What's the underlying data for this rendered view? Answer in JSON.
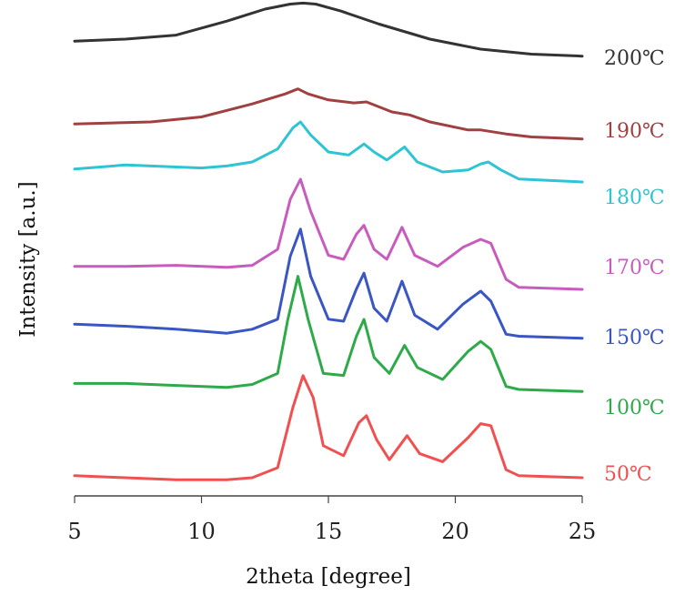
{
  "chart_data": {
    "type": "line",
    "xlabel": "2theta [degree]",
    "ylabel": "Intensity [a.u.]",
    "xlim": [
      5,
      25
    ],
    "x_ticks": [
      5,
      10,
      15,
      20,
      25
    ],
    "y_ticks": [],
    "grid": false,
    "legend": "labels at right end of each trace",
    "stacked_offset": true,
    "series": [
      {
        "name": "200℃",
        "color": "#333333",
        "points": [
          [
            5,
            0.58
          ],
          [
            7,
            0.6
          ],
          [
            9,
            0.64
          ],
          [
            11,
            0.78
          ],
          [
            12.5,
            0.9
          ],
          [
            13.5,
            0.95
          ],
          [
            14,
            0.96
          ],
          [
            14.5,
            0.95
          ],
          [
            15.5,
            0.88
          ],
          [
            17,
            0.75
          ],
          [
            19,
            0.6
          ],
          [
            21,
            0.5
          ],
          [
            23,
            0.45
          ],
          [
            25,
            0.43
          ]
        ]
      },
      {
        "name": "190℃",
        "color": "#a04040",
        "points": [
          [
            5,
            0.48
          ],
          [
            8,
            0.5
          ],
          [
            10,
            0.55
          ],
          [
            12,
            0.68
          ],
          [
            13.3,
            0.78
          ],
          [
            13.8,
            0.83
          ],
          [
            14.2,
            0.78
          ],
          [
            15,
            0.72
          ],
          [
            16,
            0.69
          ],
          [
            16.5,
            0.7
          ],
          [
            17.5,
            0.6
          ],
          [
            18.2,
            0.57
          ],
          [
            19,
            0.5
          ],
          [
            20.5,
            0.42
          ],
          [
            21,
            0.42
          ],
          [
            22,
            0.38
          ],
          [
            23,
            0.35
          ],
          [
            25,
            0.33
          ]
        ]
      },
      {
        "name": "180℃",
        "color": "#2ec4d3",
        "points": [
          [
            5,
            0.73
          ],
          [
            7,
            0.77
          ],
          [
            9,
            0.75
          ],
          [
            10,
            0.74
          ],
          [
            11,
            0.76
          ],
          [
            12,
            0.8
          ],
          [
            13,
            0.93
          ],
          [
            13.6,
            1.14
          ],
          [
            13.9,
            1.2
          ],
          [
            14.3,
            1.07
          ],
          [
            15,
            0.9
          ],
          [
            15.8,
            0.87
          ],
          [
            16.4,
            0.98
          ],
          [
            16.8,
            0.9
          ],
          [
            17.3,
            0.82
          ],
          [
            18,
            0.95
          ],
          [
            18.5,
            0.8
          ],
          [
            19.5,
            0.7
          ],
          [
            20.5,
            0.72
          ],
          [
            21,
            0.78
          ],
          [
            21.3,
            0.8
          ],
          [
            21.8,
            0.72
          ],
          [
            22.5,
            0.63
          ],
          [
            25,
            0.6
          ]
        ]
      },
      {
        "name": "170℃",
        "color": "#c85cbe",
        "points": [
          [
            5,
            0.43
          ],
          [
            7,
            0.43
          ],
          [
            9,
            0.44
          ],
          [
            11,
            0.42
          ],
          [
            12,
            0.44
          ],
          [
            13,
            0.6
          ],
          [
            13.5,
            1.1
          ],
          [
            13.9,
            1.3
          ],
          [
            14.3,
            0.98
          ],
          [
            15,
            0.54
          ],
          [
            15.6,
            0.5
          ],
          [
            16.1,
            0.75
          ],
          [
            16.4,
            0.84
          ],
          [
            16.8,
            0.6
          ],
          [
            17.3,
            0.5
          ],
          [
            17.9,
            0.82
          ],
          [
            18.4,
            0.54
          ],
          [
            19.3,
            0.43
          ],
          [
            20.3,
            0.62
          ],
          [
            21,
            0.7
          ],
          [
            21.4,
            0.66
          ],
          [
            22,
            0.3
          ],
          [
            22.5,
            0.22
          ],
          [
            25,
            0.2
          ]
        ]
      },
      {
        "name": "150℃",
        "color": "#3a56c4",
        "points": [
          [
            5,
            0.57
          ],
          [
            7,
            0.55
          ],
          [
            9,
            0.52
          ],
          [
            11,
            0.48
          ],
          [
            12,
            0.52
          ],
          [
            13,
            0.62
          ],
          [
            13.5,
            1.25
          ],
          [
            13.9,
            1.52
          ],
          [
            14.3,
            1.05
          ],
          [
            15,
            0.62
          ],
          [
            15.6,
            0.6
          ],
          [
            16.1,
            0.92
          ],
          [
            16.4,
            1.08
          ],
          [
            16.8,
            0.73
          ],
          [
            17.3,
            0.6
          ],
          [
            17.9,
            1.0
          ],
          [
            18.4,
            0.66
          ],
          [
            19.3,
            0.52
          ],
          [
            20.3,
            0.77
          ],
          [
            21,
            0.9
          ],
          [
            21.4,
            0.8
          ],
          [
            22,
            0.47
          ],
          [
            22.5,
            0.45
          ],
          [
            25,
            0.43
          ]
        ]
      },
      {
        "name": "100℃",
        "color": "#2eaa4a",
        "points": [
          [
            5,
            0.66
          ],
          [
            7,
            0.66
          ],
          [
            9,
            0.64
          ],
          [
            11,
            0.62
          ],
          [
            12,
            0.65
          ],
          [
            13,
            0.76
          ],
          [
            13.4,
            1.3
          ],
          [
            13.8,
            1.73
          ],
          [
            14.2,
            1.3
          ],
          [
            14.8,
            0.76
          ],
          [
            15.6,
            0.74
          ],
          [
            16.1,
            1.13
          ],
          [
            16.4,
            1.3
          ],
          [
            16.8,
            0.92
          ],
          [
            17.4,
            0.76
          ],
          [
            18,
            1.04
          ],
          [
            18.5,
            0.82
          ],
          [
            19.5,
            0.7
          ],
          [
            20.5,
            0.98
          ],
          [
            21,
            1.08
          ],
          [
            21.4,
            1.0
          ],
          [
            22,
            0.63
          ],
          [
            22.5,
            0.6
          ],
          [
            25,
            0.58
          ]
        ]
      },
      {
        "name": "50℃",
        "color": "#f05050",
        "points": [
          [
            5,
            0.42
          ],
          [
            7,
            0.4
          ],
          [
            9,
            0.38
          ],
          [
            11,
            0.38
          ],
          [
            12,
            0.4
          ],
          [
            13,
            0.5
          ],
          [
            13.6,
            1.1
          ],
          [
            14,
            1.42
          ],
          [
            14.4,
            1.2
          ],
          [
            14.8,
            0.72
          ],
          [
            15.6,
            0.62
          ],
          [
            16.2,
            0.95
          ],
          [
            16.5,
            1.02
          ],
          [
            16.9,
            0.78
          ],
          [
            17.4,
            0.58
          ],
          [
            18.1,
            0.82
          ],
          [
            18.6,
            0.64
          ],
          [
            19.5,
            0.56
          ],
          [
            20.5,
            0.8
          ],
          [
            21,
            0.94
          ],
          [
            21.4,
            0.92
          ],
          [
            22,
            0.48
          ],
          [
            22.5,
            0.42
          ],
          [
            25,
            0.4
          ]
        ]
      }
    ]
  }
}
